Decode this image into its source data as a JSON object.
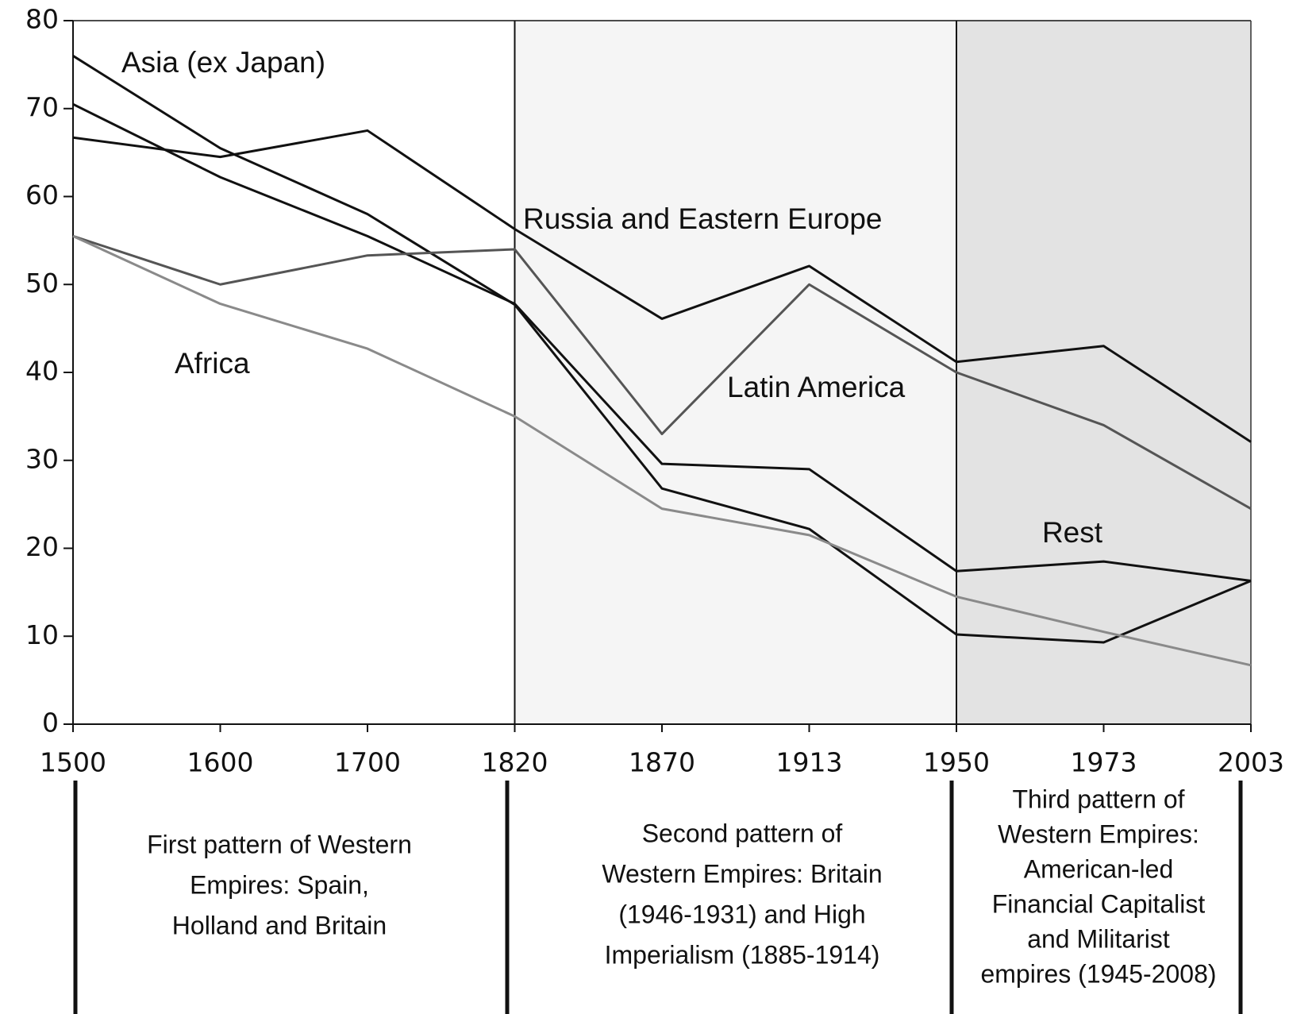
{
  "chart_data": {
    "type": "line",
    "categories": [
      1500,
      1600,
      1700,
      1820,
      1870,
      1913,
      1950,
      1973,
      2003
    ],
    "ylim": [
      0,
      80
    ],
    "yticks": [
      0,
      10,
      20,
      30,
      40,
      50,
      60,
      70,
      80
    ],
    "series": [
      {
        "name": "Asia (ex Japan)",
        "color": "#111111",
        "values": [
          76,
          65.5,
          58,
          47.7,
          26.8,
          22.2,
          10.2,
          9.3,
          16.3
        ]
      },
      {
        "name": "Rest",
        "color": "#111111",
        "values": [
          70.5,
          62.2,
          55.5,
          47.8,
          29.6,
          29,
          17.4,
          18.5,
          16.3
        ]
      },
      {
        "name": "Russia and Eastern Europe",
        "color": "#111111",
        "values": [
          66.7,
          64.5,
          67.5,
          56.3,
          46.1,
          52.1,
          41.2,
          43,
          32.1
        ]
      },
      {
        "name": "Latin America",
        "color": "#555555",
        "values": [
          55.5,
          50,
          53.3,
          54,
          33,
          50,
          40,
          34,
          24.5
        ]
      },
      {
        "name": "Africa",
        "color": "#8a8a8a",
        "values": [
          55.5,
          47.8,
          42.7,
          35,
          24.5,
          21.5,
          14.5,
          10.5,
          6.7
        ]
      }
    ],
    "periods": [
      {
        "lines": [
          "First pattern of Western",
          "Empires:  Spain,",
          "Holland and Britain"
        ]
      },
      {
        "lines": [
          "Second pattern of",
          "Western Empires:  Britain",
          "(1946-1931) and High",
          "Imperialism (1885-1914)"
        ]
      },
      {
        "lines": [
          "Third pattern of",
          "Western Empires:",
          "American-led",
          "Financial Capitalist",
          "and Militarist",
          "empires (1945-2008)"
        ]
      }
    ]
  }
}
